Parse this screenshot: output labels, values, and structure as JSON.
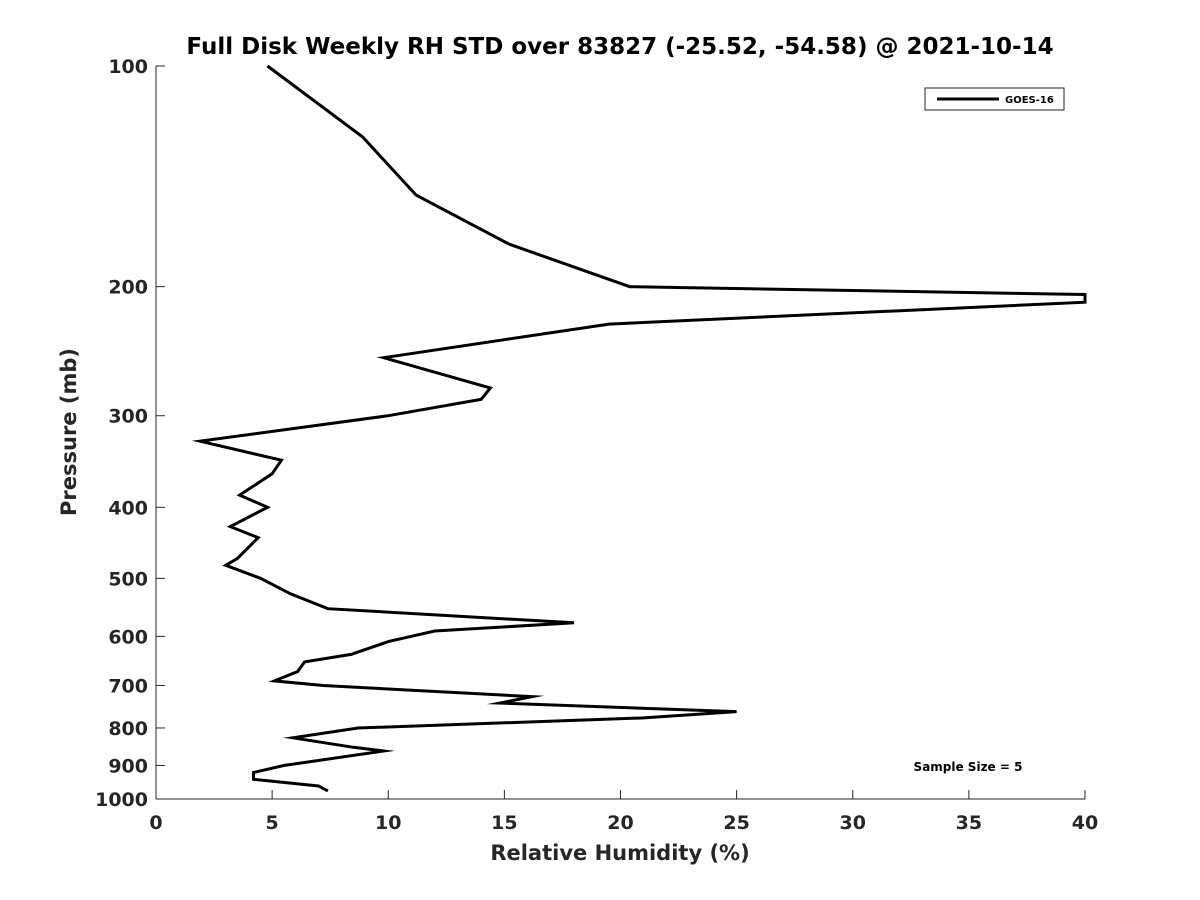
{
  "chart_data": {
    "type": "line",
    "title": "Full Disk Weekly RH STD over 83827 (-25.52, -54.58) @ 2021-10-14",
    "xlabel": "Relative Humidity (%)",
    "ylabel": "Pressure (mb)",
    "xlim": [
      0,
      40
    ],
    "ylim": [
      100,
      1000
    ],
    "y_scale": "log",
    "y_reversed": true,
    "grid": false,
    "xticks": [
      0,
      5,
      10,
      15,
      20,
      25,
      30,
      35,
      40
    ],
    "yticks": [
      100,
      200,
      300,
      400,
      500,
      600,
      700,
      800,
      900,
      1000
    ],
    "legend": {
      "position": "top-right"
    },
    "annotation": "Sample Size = 5",
    "series": [
      {
        "name": "GOES-16",
        "color": "#000000",
        "points": [
          [
            4.8,
            100
          ],
          [
            8.9,
            125
          ],
          [
            11.2,
            150
          ],
          [
            15.2,
            175
          ],
          [
            20.4,
            200
          ],
          [
            40.0,
            205
          ],
          [
            40.0,
            210
          ],
          [
            19.5,
            225
          ],
          [
            9.8,
            250
          ],
          [
            14.4,
            275
          ],
          [
            14.0,
            285
          ],
          [
            10.0,
            300
          ],
          [
            1.9,
            325
          ],
          [
            5.4,
            345
          ],
          [
            5.0,
            360
          ],
          [
            3.6,
            385
          ],
          [
            4.8,
            400
          ],
          [
            3.2,
            425
          ],
          [
            4.4,
            440
          ],
          [
            3.5,
            470
          ],
          [
            3.0,
            480
          ],
          [
            4.5,
            500
          ],
          [
            5.8,
            525
          ],
          [
            7.4,
            550
          ],
          [
            18.0,
            575
          ],
          [
            12.0,
            590
          ],
          [
            10.0,
            610
          ],
          [
            8.4,
            635
          ],
          [
            6.4,
            650
          ],
          [
            6.1,
            670
          ],
          [
            5.1,
            690
          ],
          [
            7.2,
            700
          ],
          [
            16.2,
            725
          ],
          [
            14.8,
            740
          ],
          [
            25.0,
            760
          ],
          [
            21.0,
            775
          ],
          [
            8.7,
            800
          ],
          [
            5.9,
            825
          ],
          [
            8.5,
            850
          ],
          [
            9.8,
            860
          ],
          [
            5.5,
            900
          ],
          [
            4.2,
            920
          ],
          [
            4.2,
            940
          ],
          [
            7.0,
            960
          ],
          [
            7.4,
            975
          ]
        ]
      }
    ]
  }
}
